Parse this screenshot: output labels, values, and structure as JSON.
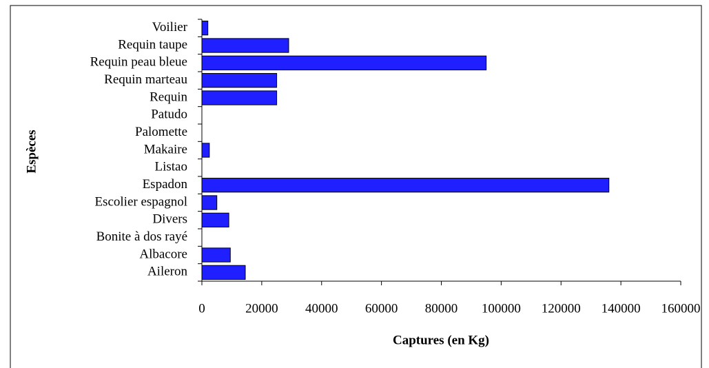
{
  "chart_data": {
    "type": "bar",
    "orientation": "horizontal",
    "x_label": "Captures (en Kg)",
    "y_label": "Espèces",
    "categories": [
      "Aileron",
      "Albacore",
      "Bonite à dos rayé",
      "Divers",
      "Escolier espagnol",
      "Espadon",
      "Listao",
      "Makaire",
      "Palomette",
      "Patudo",
      "Requin",
      "Requin marteau",
      "Requin peau bleue",
      "Requin taupe",
      "Voilier"
    ],
    "values": [
      14500,
      9500,
      0,
      9000,
      5000,
      136000,
      0,
      2500,
      0,
      0,
      25000,
      25000,
      95000,
      29000,
      2000
    ],
    "color": "#1f1fff",
    "xlim": [
      0,
      160000
    ],
    "xticks": [
      0,
      20000,
      40000,
      60000,
      80000,
      100000,
      120000,
      140000,
      160000
    ]
  }
}
